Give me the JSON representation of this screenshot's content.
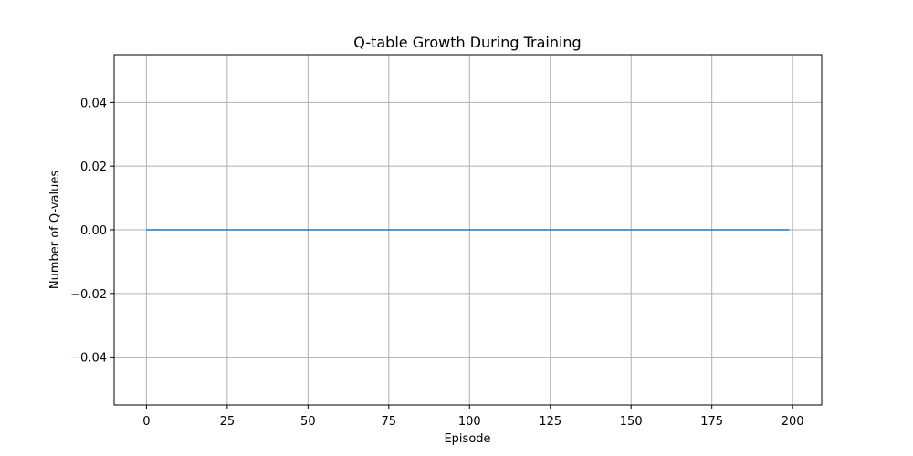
{
  "chart_data": {
    "type": "line",
    "title": "Q-table Growth During Training",
    "xlabel": "Episode",
    "ylabel": "Number of Q-values",
    "xlim": [
      -10,
      209
    ],
    "ylim": [
      -0.055,
      0.055
    ],
    "x_ticks": [
      0,
      25,
      50,
      75,
      100,
      125,
      150,
      175,
      200
    ],
    "x_tick_labels": [
      "0",
      "25",
      "50",
      "75",
      "100",
      "125",
      "150",
      "175",
      "200"
    ],
    "y_ticks": [
      -0.04,
      -0.02,
      0.0,
      0.02,
      0.04
    ],
    "y_tick_labels": [
      "−0.04",
      "−0.02",
      "0.00",
      "0.02",
      "0.04"
    ],
    "grid": true,
    "series": [
      {
        "x": [
          0,
          199
        ],
        "y": [
          0,
          0
        ],
        "color": "#1f77b4"
      }
    ]
  }
}
